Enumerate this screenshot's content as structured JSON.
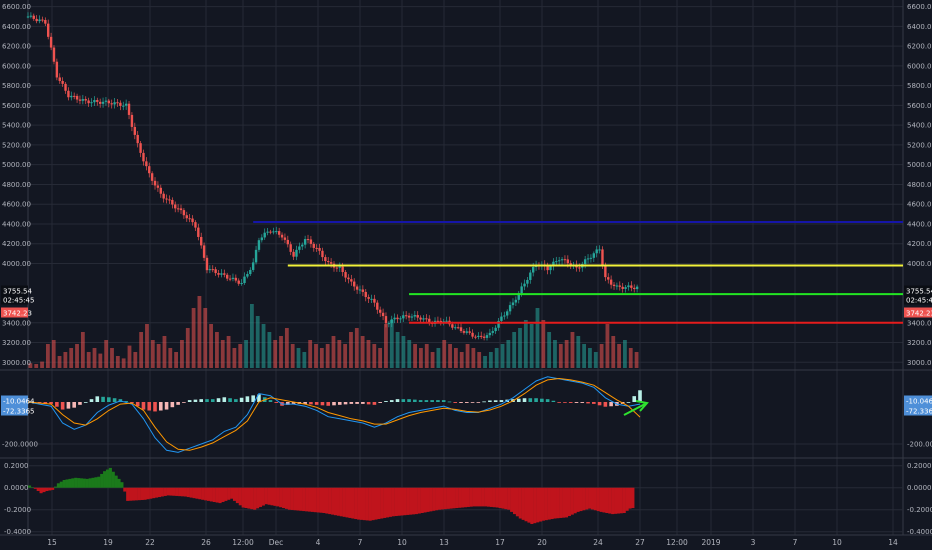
{
  "chart_data": {
    "type": "candlestick",
    "colors": {
      "background": "#131722",
      "grid": "#262a36",
      "up": "#26a69a",
      "down": "#ef5350",
      "macd_line": "#2196f3",
      "signal_line": "#ff9800",
      "ind_pos": "#1b7a1b",
      "ind_neg": "#c0141c",
      "hline_blue": "#1515a8",
      "hline_yellow": "#f2f23a",
      "hline_green": "#23e623",
      "hline_red": "#e51c1c",
      "arrow": "#2fe22f",
      "tag_red": "#ef5350",
      "tag_blue": "#4e8fd8",
      "tag_dark": "#0b0e14"
    },
    "x_axis": {
      "ticks": [
        "15",
        "19",
        "22",
        "26",
        "12:00",
        "Dec",
        "4",
        "7",
        "10",
        "13",
        "17",
        "20",
        "24",
        "27",
        "12:00",
        "2019",
        "3",
        "7",
        "10",
        "14"
      ]
    },
    "price_panel": {
      "ylim": [
        3000,
        6600
      ],
      "ticks": [
        "6600.00",
        "6400.00",
        "6200.00",
        "6000.00",
        "5800.00",
        "5600.00",
        "5400.00",
        "5200.00",
        "5000.00",
        "4800.00",
        "4600.00",
        "4400.00",
        "4200.00",
        "4000.00",
        "3400.00",
        "3200.00",
        "3000.00"
      ],
      "path_points": [
        [
          0,
          6500
        ],
        [
          3,
          6440
        ],
        [
          5,
          5900
        ],
        [
          7,
          5700
        ],
        [
          10,
          5640
        ],
        [
          14,
          5630
        ],
        [
          17,
          5600
        ],
        [
          19,
          5200
        ],
        [
          21,
          4900
        ],
        [
          23,
          4700
        ],
        [
          25,
          4600
        ],
        [
          27,
          4500
        ],
        [
          29,
          4380
        ],
        [
          31,
          3950
        ],
        [
          33,
          3900
        ],
        [
          35,
          3850
        ],
        [
          37,
          3800
        ],
        [
          39,
          4000
        ],
        [
          40,
          4250
        ],
        [
          42,
          4340
        ],
        [
          44,
          4280
        ],
        [
          46,
          4080
        ],
        [
          48,
          4250
        ],
        [
          50,
          4150
        ],
        [
          52,
          4000
        ],
        [
          54,
          3950
        ],
        [
          56,
          3800
        ],
        [
          58,
          3700
        ],
        [
          60,
          3600
        ],
        [
          62,
          3400
        ],
        [
          64,
          3450
        ],
        [
          66,
          3470
        ],
        [
          68,
          3450
        ],
        [
          70,
          3400
        ],
        [
          72,
          3420
        ],
        [
          74,
          3350
        ],
        [
          76,
          3300
        ],
        [
          78,
          3250
        ],
        [
          80,
          3280
        ],
        [
          82,
          3450
        ],
        [
          84,
          3600
        ],
        [
          86,
          3800
        ],
        [
          88,
          4000
        ],
        [
          90,
          3950
        ],
        [
          92,
          4050
        ],
        [
          94,
          4000
        ],
        [
          95,
          3950
        ],
        [
          97,
          4050
        ],
        [
          99,
          4150
        ],
        [
          100,
          3850
        ],
        [
          101,
          3800
        ],
        [
          102,
          3760
        ],
        [
          104,
          3760
        ],
        [
          106,
          3755
        ]
      ],
      "current_price": "3755.54",
      "countdown": "02:45:45",
      "alt_price": "3742.23",
      "hlines": [
        {
          "value": 4420,
          "start": 39,
          "color": "blue"
        },
        {
          "value": 3980,
          "start": 45,
          "color": "yellow"
        },
        {
          "value": 3690,
          "start": 66,
          "color": "green"
        },
        {
          "value": 3400,
          "start": 66,
          "color": "red"
        }
      ]
    },
    "volume_panel": {
      "values": [
        0.06,
        0.05,
        0.08,
        0.3,
        0.35,
        0.15,
        0.2,
        0.25,
        0.3,
        0.45,
        0.2,
        0.25,
        0.18,
        0.35,
        0.25,
        0.15,
        0.12,
        0.28,
        0.2,
        0.45,
        0.55,
        0.35,
        0.3,
        0.4,
        0.25,
        0.2,
        0.35,
        0.5,
        0.75,
        0.9,
        0.75,
        0.55,
        0.45,
        0.35,
        0.4,
        0.25,
        0.3,
        0.35,
        0.8,
        0.65,
        0.55,
        0.45,
        0.35,
        0.4,
        0.5,
        0.3,
        0.25,
        0.2,
        0.35,
        0.3,
        0.25,
        0.3,
        0.4,
        0.35,
        0.3,
        0.45,
        0.5,
        0.4,
        0.35,
        0.3,
        0.25,
        0.55,
        0.6,
        0.45,
        0.4,
        0.35,
        0.3,
        0.25,
        0.3,
        0.2,
        0.25,
        0.35,
        0.3,
        0.25,
        0.2,
        0.3,
        0.25,
        0.2,
        0.15,
        0.2,
        0.25,
        0.3,
        0.35,
        0.45,
        0.5,
        0.6,
        0.55,
        0.75,
        0.6,
        0.45,
        0.35,
        0.3,
        0.35,
        0.45,
        0.4,
        0.3,
        0.25,
        0.2,
        0.3,
        0.55,
        0.4,
        0.3,
        0.35,
        0.25,
        0.2
      ]
    },
    "macd_panel": {
      "ticks": [
        "-200.0000"
      ],
      "macd_value": "-10.0464",
      "signal_value": "-72.3365",
      "macd_line": [
        [
          0,
          0
        ],
        [
          4,
          -20
        ],
        [
          6,
          -100
        ],
        [
          8,
          -130
        ],
        [
          10,
          -110
        ],
        [
          12,
          -50
        ],
        [
          14,
          -15
        ],
        [
          16,
          5
        ],
        [
          18,
          -10
        ],
        [
          20,
          -80
        ],
        [
          22,
          -170
        ],
        [
          24,
          -230
        ],
        [
          26,
          -240
        ],
        [
          28,
          -220
        ],
        [
          30,
          -200
        ],
        [
          32,
          -180
        ],
        [
          34,
          -140
        ],
        [
          36,
          -120
        ],
        [
          38,
          -60
        ],
        [
          40,
          40
        ],
        [
          42,
          30
        ],
        [
          44,
          -10
        ],
        [
          46,
          -10
        ],
        [
          48,
          -20
        ],
        [
          50,
          -40
        ],
        [
          52,
          -70
        ],
        [
          54,
          -80
        ],
        [
          56,
          -90
        ],
        [
          58,
          -100
        ],
        [
          60,
          -120
        ],
        [
          62,
          -100
        ],
        [
          64,
          -70
        ],
        [
          66,
          -50
        ],
        [
          68,
          -40
        ],
        [
          70,
          -30
        ],
        [
          72,
          -20
        ],
        [
          74,
          -40
        ],
        [
          76,
          -50
        ],
        [
          78,
          -50
        ],
        [
          80,
          -30
        ],
        [
          82,
          -10
        ],
        [
          84,
          20
        ],
        [
          86,
          60
        ],
        [
          88,
          100
        ],
        [
          90,
          120
        ],
        [
          92,
          110
        ],
        [
          94,
          100
        ],
        [
          96,
          90
        ],
        [
          98,
          70
        ],
        [
          100,
          20
        ],
        [
          102,
          -10
        ],
        [
          104,
          -20
        ],
        [
          106,
          -10
        ]
      ],
      "signal_line": [
        [
          0,
          0
        ],
        [
          4,
          -10
        ],
        [
          6,
          -60
        ],
        [
          8,
          -100
        ],
        [
          10,
          -110
        ],
        [
          12,
          -80
        ],
        [
          14,
          -40
        ],
        [
          16,
          -10
        ],
        [
          18,
          -5
        ],
        [
          20,
          -40
        ],
        [
          22,
          -120
        ],
        [
          24,
          -190
        ],
        [
          26,
          -225
        ],
        [
          28,
          -230
        ],
        [
          30,
          -215
        ],
        [
          32,
          -195
        ],
        [
          34,
          -165
        ],
        [
          36,
          -135
        ],
        [
          38,
          -90
        ],
        [
          40,
          0
        ],
        [
          42,
          20
        ],
        [
          44,
          10
        ],
        [
          46,
          0
        ],
        [
          48,
          -10
        ],
        [
          50,
          -25
        ],
        [
          52,
          -50
        ],
        [
          54,
          -65
        ],
        [
          56,
          -80
        ],
        [
          58,
          -90
        ],
        [
          60,
          -105
        ],
        [
          62,
          -105
        ],
        [
          64,
          -85
        ],
        [
          66,
          -65
        ],
        [
          68,
          -50
        ],
        [
          70,
          -40
        ],
        [
          72,
          -30
        ],
        [
          74,
          -35
        ],
        [
          76,
          -45
        ],
        [
          78,
          -48
        ],
        [
          80,
          -38
        ],
        [
          82,
          -20
        ],
        [
          84,
          5
        ],
        [
          86,
          40
        ],
        [
          88,
          80
        ],
        [
          90,
          105
        ],
        [
          92,
          112
        ],
        [
          94,
          105
        ],
        [
          96,
          95
        ],
        [
          98,
          80
        ],
        [
          100,
          45
        ],
        [
          102,
          10
        ],
        [
          104,
          -20
        ],
        [
          106,
          -72
        ]
      ]
    },
    "indicator_panel": {
      "ticks": [
        "0.2000",
        "0.0000",
        "-0.2000",
        "-0.4000"
      ],
      "ylim": [
        -0.43,
        0.27
      ],
      "points": [
        [
          0,
          0.02
        ],
        [
          1,
          -0.01
        ],
        [
          2,
          -0.05
        ],
        [
          3,
          -0.03
        ],
        [
          4,
          -0.02
        ],
        [
          5,
          0.04
        ],
        [
          6,
          0.07
        ],
        [
          8,
          0.09
        ],
        [
          10,
          0.08
        ],
        [
          12,
          0.1
        ],
        [
          13,
          0.15
        ],
        [
          14,
          0.18
        ],
        [
          15,
          0.11
        ],
        [
          16,
          0.05
        ],
        [
          17,
          -0.12
        ],
        [
          20,
          -0.11
        ],
        [
          24,
          -0.07
        ],
        [
          27,
          -0.08
        ],
        [
          29,
          -0.1
        ],
        [
          31,
          -0.12
        ],
        [
          33,
          -0.14
        ],
        [
          35,
          -0.1
        ],
        [
          37,
          -0.18
        ],
        [
          39,
          -0.2
        ],
        [
          41,
          -0.15
        ],
        [
          43,
          -0.17
        ],
        [
          45,
          -0.2
        ],
        [
          47,
          -0.21
        ],
        [
          49,
          -0.22
        ],
        [
          51,
          -0.23
        ],
        [
          53,
          -0.25
        ],
        [
          55,
          -0.27
        ],
        [
          57,
          -0.29
        ],
        [
          59,
          -0.3
        ],
        [
          61,
          -0.28
        ],
        [
          63,
          -0.26
        ],
        [
          65,
          -0.25
        ],
        [
          67,
          -0.24
        ],
        [
          69,
          -0.22
        ],
        [
          71,
          -0.2
        ],
        [
          73,
          -0.19
        ],
        [
          75,
          -0.18
        ],
        [
          77,
          -0.17
        ],
        [
          79,
          -0.17
        ],
        [
          81,
          -0.18
        ],
        [
          83,
          -0.2
        ],
        [
          85,
          -0.28
        ],
        [
          87,
          -0.33
        ],
        [
          89,
          -0.3
        ],
        [
          91,
          -0.28
        ],
        [
          93,
          -0.27
        ],
        [
          95,
          -0.22
        ],
        [
          97,
          -0.19
        ],
        [
          99,
          -0.22
        ],
        [
          101,
          -0.24
        ],
        [
          103,
          -0.23
        ],
        [
          104,
          -0.19
        ],
        [
          105,
          -0.18
        ]
      ]
    }
  }
}
